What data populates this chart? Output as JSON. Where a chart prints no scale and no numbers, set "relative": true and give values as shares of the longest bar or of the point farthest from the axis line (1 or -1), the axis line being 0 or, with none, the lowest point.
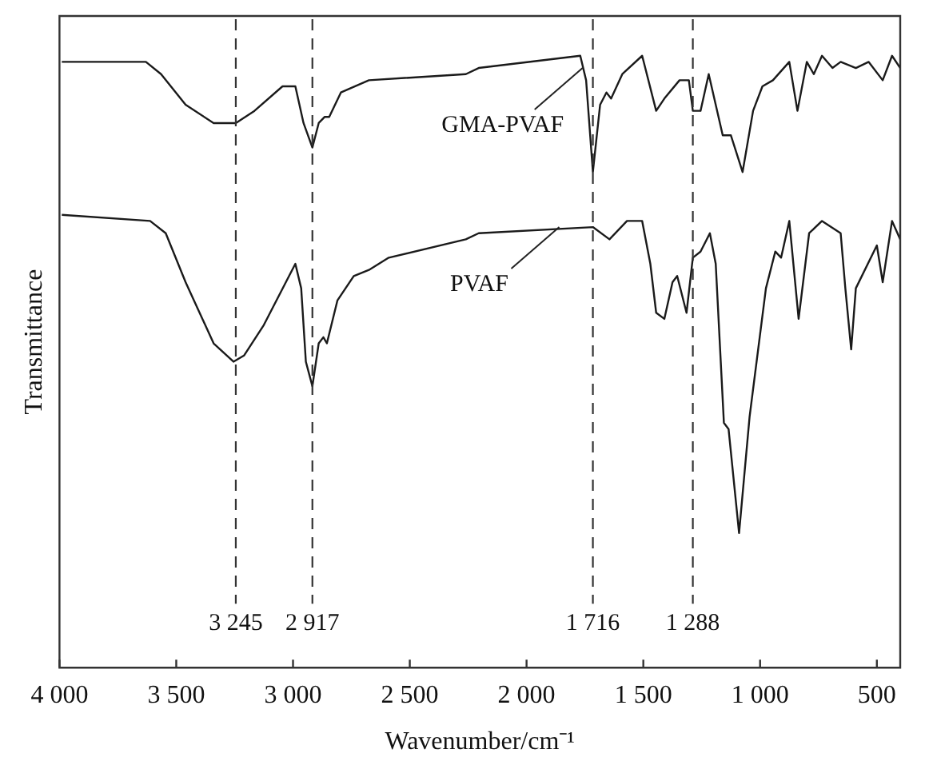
{
  "chart_data": {
    "type": "line",
    "xlabel": "Wavenumber/cm⁻¹",
    "ylabel": "Transmittance",
    "relative": true,
    "xlim": [
      4000,
      400
    ],
    "xticks": [
      {
        "value": 4000,
        "label": "4 000"
      },
      {
        "value": 3500,
        "label": "3 500"
      },
      {
        "value": 3000,
        "label": "3 000"
      },
      {
        "value": 2500,
        "label": "2 500"
      },
      {
        "value": 2000,
        "label": "2 000"
      },
      {
        "value": 1500,
        "label": "1 500"
      },
      {
        "value": 1000,
        "label": "1 000"
      },
      500
    ],
    "grid": false,
    "legend": false,
    "marker": "none",
    "line_style": "solid",
    "series": [
      {
        "color": "#1a1a1a",
        "x": [
          3990,
          3630,
          3565,
          3460,
          3340,
          3245,
          3165,
          3045,
          2990,
          2955,
          2917,
          2890,
          2865,
          2845,
          2795,
          2675,
          2260,
          2205,
          1770,
          1745,
          1716,
          1685,
          1658,
          1638,
          1590,
          1505,
          1445,
          1410,
          1345,
          1305,
          1288,
          1255,
          1220,
          1160,
          1125,
          1075,
          1030,
          990,
          945,
          875,
          840,
          800,
          770,
          735,
          690,
          655,
          590,
          535,
          475,
          435,
          400
        ],
        "values": [
          0.99,
          0.99,
          0.97,
          0.92,
          0.89,
          0.89,
          0.91,
          0.95,
          0.95,
          0.89,
          0.85,
          0.89,
          0.9,
          0.9,
          0.94,
          0.96,
          0.97,
          0.98,
          1.0,
          0.96,
          0.81,
          0.92,
          0.94,
          0.93,
          0.97,
          1.0,
          0.91,
          0.93,
          0.96,
          0.96,
          0.91,
          0.91,
          0.97,
          0.87,
          0.87,
          0.81,
          0.91,
          0.95,
          0.96,
          0.99,
          0.91,
          0.99,
          0.97,
          1.0,
          0.98,
          0.99,
          0.98,
          0.99,
          0.96,
          1.0,
          0.98
        ]
      },
      {
        "color": "#1a1a1a",
        "x": [
          3990,
          3612,
          3545,
          3460,
          3340,
          3255,
          3210,
          3125,
          2990,
          2965,
          2945,
          2917,
          2890,
          2870,
          2855,
          2810,
          2740,
          2675,
          2590,
          2260,
          2205,
          1716,
          1645,
          1570,
          1505,
          1470,
          1445,
          1410,
          1375,
          1355,
          1315,
          1288,
          1255,
          1215,
          1190,
          1155,
          1135,
          1090,
          1045,
          975,
          935,
          910,
          875,
          835,
          790,
          735,
          655,
          635,
          610,
          590,
          500,
          475,
          435,
          400
        ],
        "values": [
          0.74,
          0.73,
          0.71,
          0.63,
          0.53,
          0.5,
          0.51,
          0.56,
          0.66,
          0.62,
          0.5,
          0.46,
          0.53,
          0.54,
          0.53,
          0.6,
          0.64,
          0.65,
          0.67,
          0.7,
          0.71,
          0.72,
          0.7,
          0.73,
          0.73,
          0.66,
          0.58,
          0.57,
          0.63,
          0.64,
          0.58,
          0.67,
          0.68,
          0.71,
          0.66,
          0.4,
          0.39,
          0.22,
          0.41,
          0.62,
          0.68,
          0.67,
          0.73,
          0.57,
          0.71,
          0.73,
          0.71,
          0.62,
          0.52,
          0.62,
          0.69,
          0.63,
          0.73,
          0.7
        ]
      }
    ],
    "ref_lines": [
      {
        "axis": "x",
        "value": 3245,
        "label": "3 245",
        "line_style": "dashed"
      },
      {
        "axis": "x",
        "value": 2917,
        "label": "2 917",
        "line_style": "dashed"
      },
      {
        "axis": "x",
        "value": 1716,
        "label": "1 716",
        "line_style": "dashed"
      },
      {
        "axis": "x",
        "value": 1288,
        "label": "1 288",
        "line_style": "dashed"
      }
    ],
    "annotations": [
      {
        "text": "GMA-PVAF",
        "x": 1760,
        "y": 0.98
      },
      {
        "text": "PVAF",
        "x": 1860,
        "y": 0.72
      }
    ]
  }
}
